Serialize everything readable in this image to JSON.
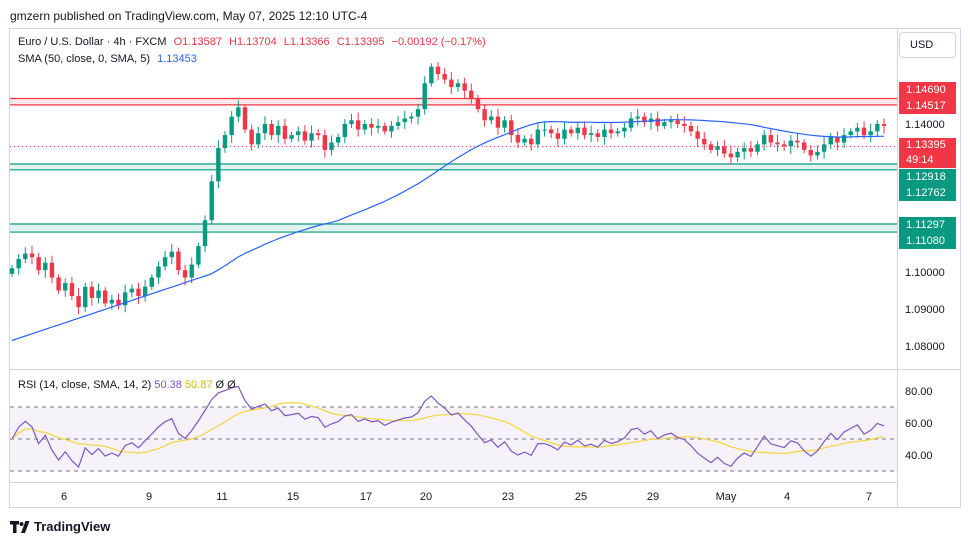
{
  "header": {
    "publish_text": "gmzern published on TradingView.com, May 07, 2025 12:10 UTC-4"
  },
  "legend": {
    "symbol": "Euro / U.S. Dollar · 4h · FXCM",
    "open": "O1.13587",
    "high": "H1.13704",
    "low": "L1.13366",
    "close": "C1.13395",
    "change": "−0.00192 (−0.17%)",
    "sma_label": "SMA (50, close, 0, SMA, 5)",
    "sma_value": "1.13453"
  },
  "rsi_legend": {
    "label": "RSI (14, close, SMA, 14, 2)",
    "rsi_value": "50.38",
    "rsi_sma_value": "50.87",
    "extra1": "Ø",
    "extra2": "Ø"
  },
  "currency_button": "USD",
  "price_tags": {
    "r1": "1.14690",
    "r2": "1.14517",
    "last": "1.13395",
    "countdown": "49:14",
    "s1": "1.12918",
    "s2": "1.12762",
    "s3": "1.11297",
    "s4": "1.11080"
  },
  "footer": {
    "logo_text": "TradingView"
  },
  "colors": {
    "up": "#089981",
    "down": "#f23645",
    "sma": "#2962ff",
    "rsi": "#7e57c2",
    "rsi_sma": "#f7d53c",
    "resistance": "#f23645",
    "support": "#089981"
  },
  "chart_data": [
    {
      "type": "candlestick",
      "title": "Euro / U.S. Dollar · 4h · FXCM",
      "y_axis_ticks": [
        1.08,
        1.09,
        1.1,
        1.14
      ],
      "ylim": [
        1.0762,
        1.1555
      ],
      "x_axis_ticks": [
        "6",
        "9",
        "11",
        "15",
        "17",
        "20",
        "23",
        "25",
        "29",
        "May",
        "4",
        "7"
      ],
      "close_series": [
        1.101,
        1.1035,
        1.105,
        1.104,
        1.1005,
        1.1025,
        1.0985,
        1.095,
        1.097,
        1.0935,
        1.0905,
        1.096,
        1.093,
        1.095,
        1.0915,
        1.0925,
        1.091,
        1.0945,
        1.0955,
        1.0935,
        1.096,
        1.0985,
        1.1015,
        1.104,
        1.1055,
        1.1005,
        1.0985,
        1.102,
        1.107,
        1.114,
        1.1245,
        1.1335,
        1.137,
        1.142,
        1.1445,
        1.1385,
        1.1345,
        1.1375,
        1.14,
        1.137,
        1.1395,
        1.136,
        1.137,
        1.138,
        1.1355,
        1.1375,
        1.137,
        1.133,
        1.135,
        1.1365,
        1.14,
        1.141,
        1.1385,
        1.14,
        1.139,
        1.1395,
        1.138,
        1.1395,
        1.1405,
        1.1415,
        1.142,
        1.144,
        1.151,
        1.1555,
        1.1535,
        1.152,
        1.15,
        1.151,
        1.149,
        1.147,
        1.144,
        1.141,
        1.142,
        1.139,
        1.141,
        1.137,
        1.135,
        1.136,
        1.1345,
        1.1385,
        1.1385,
        1.1375,
        1.136,
        1.1385,
        1.1375,
        1.139,
        1.137,
        1.1375,
        1.1365,
        1.1385,
        1.1375,
        1.138,
        1.139,
        1.1415,
        1.142,
        1.1405,
        1.1415,
        1.1395,
        1.1405,
        1.141,
        1.14,
        1.1395,
        1.138,
        1.136,
        1.1345,
        1.133,
        1.134,
        1.132,
        1.131,
        1.1325,
        1.1335,
        1.1325,
        1.1345,
        1.137,
        1.135,
        1.1345,
        1.134,
        1.1355,
        1.135,
        1.133,
        1.1315,
        1.1325,
        1.1345,
        1.1365,
        1.135,
        1.137,
        1.138,
        1.139,
        1.137,
        1.138,
        1.14,
        1.1395
      ],
      "sma_series_name": "SMA (50, close, 0, SMA, 5)",
      "sma_last": 1.13453,
      "horizontal_levels": [
        {
          "value": 1.1469,
          "kind": "resistance"
        },
        {
          "value": 1.14517,
          "kind": "resistance"
        },
        {
          "value": 1.12918,
          "kind": "support"
        },
        {
          "value": 1.12762,
          "kind": "support"
        },
        {
          "value": 1.11297,
          "kind": "support"
        },
        {
          "value": 1.1108,
          "kind": "support"
        }
      ],
      "last_price": 1.13395
    },
    {
      "type": "line",
      "title": "RSI (14, close, SMA, 14, 2)",
      "y_axis_ticks": [
        40.0,
        60.0,
        80.0
      ],
      "ylim": [
        22,
        90
      ],
      "bands": [
        30,
        50,
        70
      ],
      "rsi_last": 50.38,
      "rsi_sma_last": 50.87
    }
  ]
}
